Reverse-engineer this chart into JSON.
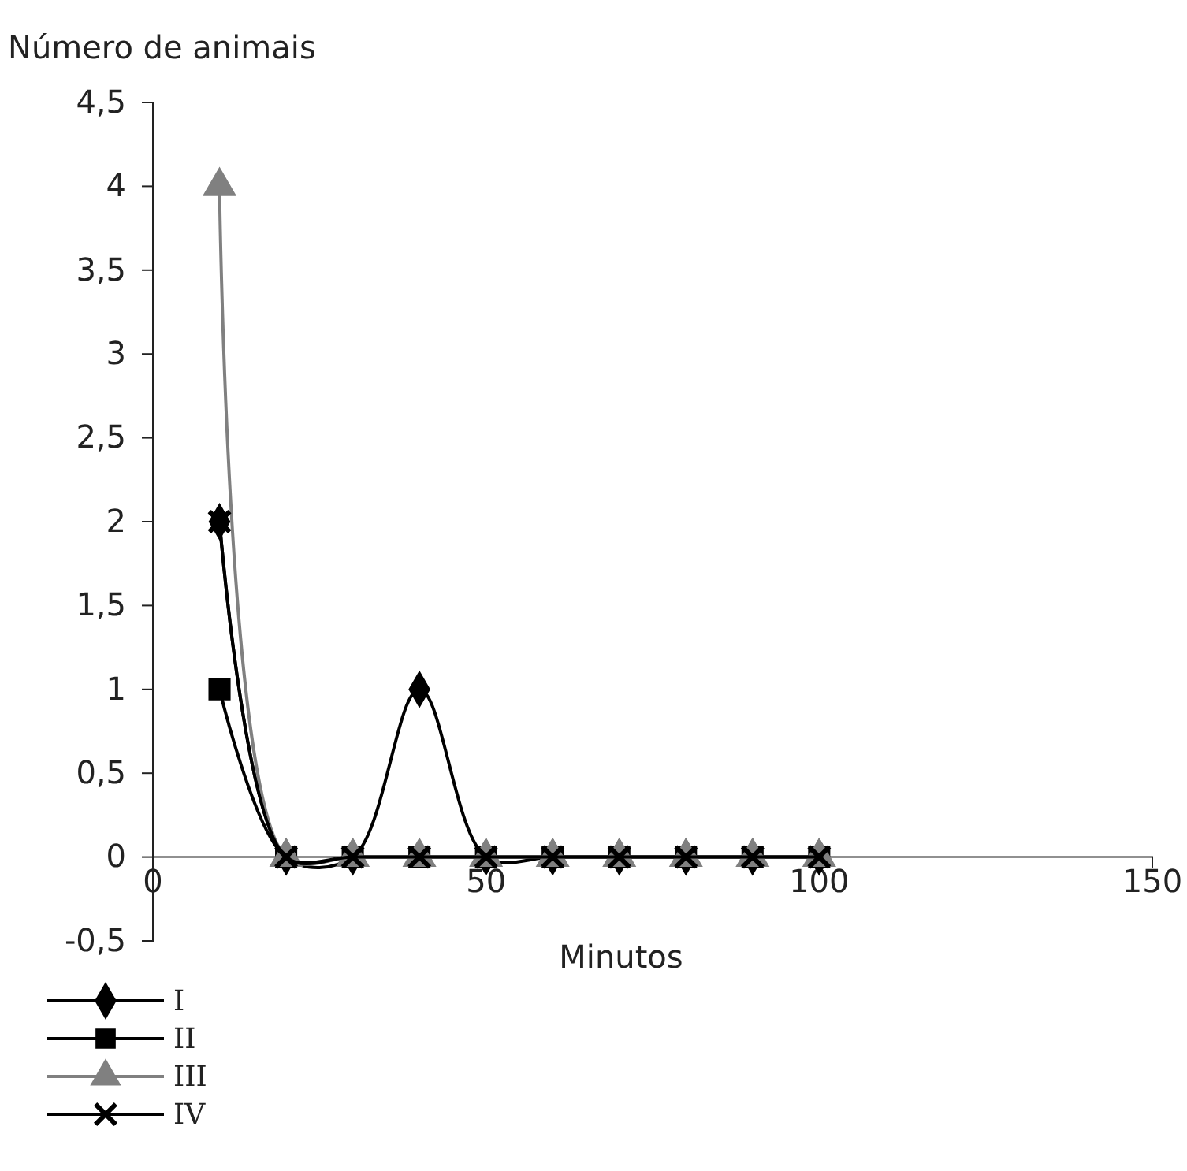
{
  "chart_data": {
    "type": "line",
    "ylabel": "Número de animais",
    "xlabel": "Minutos",
    "x": [
      10,
      20,
      30,
      40,
      50,
      60,
      70,
      80,
      90,
      100
    ],
    "series": [
      {
        "name": "I",
        "color": "#000000",
        "marker": "diamond",
        "values": [
          2,
          0,
          0,
          1,
          0,
          0,
          0,
          0,
          0,
          0
        ]
      },
      {
        "name": "II",
        "color": "#000000",
        "marker": "square",
        "values": [
          1,
          0,
          0,
          0,
          0,
          0,
          0,
          0,
          0,
          0
        ]
      },
      {
        "name": "III",
        "color": "#808080",
        "marker": "triangle",
        "values": [
          4,
          0,
          0,
          0,
          0,
          0,
          0,
          0,
          0,
          0
        ]
      },
      {
        "name": "IV",
        "color": "#000000",
        "marker": "cross",
        "values": [
          2,
          0,
          0,
          0,
          0,
          0,
          0,
          0,
          0,
          0
        ]
      }
    ],
    "xlim": [
      0,
      150
    ],
    "xticks": [
      0,
      50,
      100,
      150
    ],
    "ylim": [
      -0.5,
      4.5
    ],
    "yticks": [
      {
        "value": -0.5,
        "label": "-0,5"
      },
      0,
      {
        "value": 0.5,
        "label": "0,5"
      },
      1,
      {
        "value": 1.5,
        "label": "1,5"
      },
      2,
      {
        "value": 2.5,
        "label": "2,5"
      },
      3,
      {
        "value": 3.5,
        "label": "3,5"
      },
      4,
      {
        "value": 4.5,
        "label": "4,5"
      }
    ],
    "grid": false,
    "legend": "bottom left"
  }
}
